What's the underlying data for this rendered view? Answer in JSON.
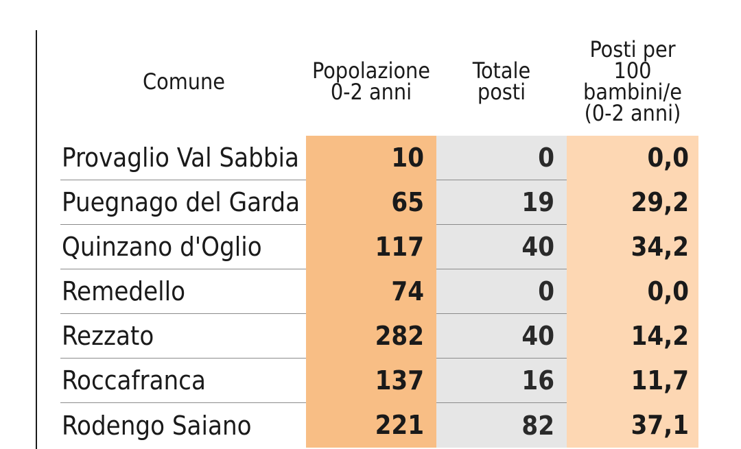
{
  "table": {
    "headers": {
      "comune": "Comune",
      "popolazione": "Popolazione\n0-2 anni",
      "totale_posti": "Totale\nposti",
      "posti_per_100": "Posti per\n100\nbambini/e\n(0-2 anni)"
    },
    "colors": {
      "popolazione_column": "#f8be85",
      "totale_posti_column": "#e6e6e6",
      "posti_per_100_column": "#fdd7b3"
    },
    "rows": [
      {
        "comune": "Provaglio Val Sabbia",
        "popolazione": "10",
        "totale_posti": "0",
        "posti_per_100": "0,0"
      },
      {
        "comune": "Puegnago del Garda",
        "popolazione": "65",
        "totale_posti": "19",
        "posti_per_100": "29,2"
      },
      {
        "comune": "Quinzano d'Oglio",
        "popolazione": "117",
        "totale_posti": "40",
        "posti_per_100": "34,2"
      },
      {
        "comune": "Remedello",
        "popolazione": "74",
        "totale_posti": "0",
        "posti_per_100": "0,0"
      },
      {
        "comune": "Rezzato",
        "popolazione": "282",
        "totale_posti": "40",
        "posti_per_100": "14,2"
      },
      {
        "comune": "Roccafranca",
        "popolazione": "137",
        "totale_posti": "16",
        "posti_per_100": "11,7"
      },
      {
        "comune": "Rodengo Saiano",
        "popolazione": "221",
        "totale_posti": "82",
        "posti_per_100": "37,1"
      }
    ]
  }
}
